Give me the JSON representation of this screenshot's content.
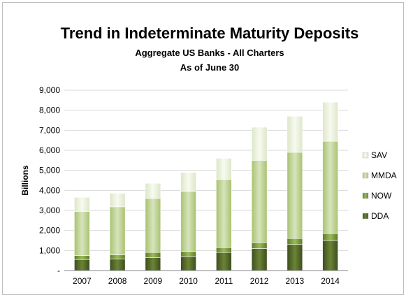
{
  "chart_data": {
    "type": "bar",
    "stacked": true,
    "title": "Trend in Indeterminate Maturity Deposits",
    "subtitle_line1": "Aggregate US Banks - All Charters",
    "subtitle_line2": "As of June 30",
    "xlabel": "",
    "ylabel": "Billions",
    "ylim": [
      0,
      9000
    ],
    "yticks": [
      0,
      1000,
      2000,
      3000,
      4000,
      5000,
      6000,
      7000,
      8000,
      9000
    ],
    "ytick_labels": [
      "-",
      "1,000",
      "2,000",
      "3,000",
      "4,000",
      "5,000",
      "6,000",
      "7,000",
      "8,000",
      "9,000"
    ],
    "categories": [
      "2007",
      "2008",
      "2009",
      "2010",
      "2011",
      "2012",
      "2013",
      "2014"
    ],
    "grid": true,
    "legend_position": "right",
    "series": [
      {
        "name": "DDA",
        "color": "#4f6228",
        "values": [
          550,
          580,
          650,
          700,
          900,
          1100,
          1300,
          1500
        ]
      },
      {
        "name": "NOW",
        "color": "#77933c",
        "values": [
          200,
          200,
          250,
          250,
          250,
          300,
          300,
          350
        ]
      },
      {
        "name": "MMDA",
        "color": "#c3d69b",
        "values": [
          2200,
          2400,
          2700,
          3000,
          3400,
          4100,
          4300,
          4600
        ]
      },
      {
        "name": "SAV",
        "color": "#ebf1de",
        "values": [
          700,
          680,
          750,
          950,
          1050,
          1650,
          1800,
          1950
        ]
      }
    ]
  }
}
